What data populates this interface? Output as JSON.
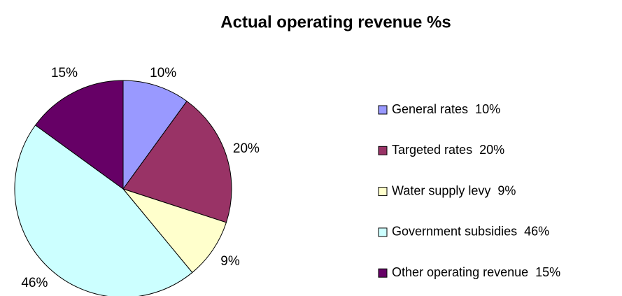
{
  "chart_data": {
    "type": "pie",
    "title": "Actual operating revenue %s",
    "categories": [
      "General rates  10%",
      "Targeted rates  20%",
      "Water supply levy  9%",
      "Government subsidies  46%",
      "Other operating revenue  15%"
    ],
    "values": [
      10,
      20,
      9,
      46,
      15
    ],
    "value_labels": [
      "10%",
      "20%",
      "9%",
      "46%",
      "15%"
    ],
    "colors": [
      "#9999ff",
      "#993366",
      "#ffffcc",
      "#ccffff",
      "#660066"
    ]
  }
}
